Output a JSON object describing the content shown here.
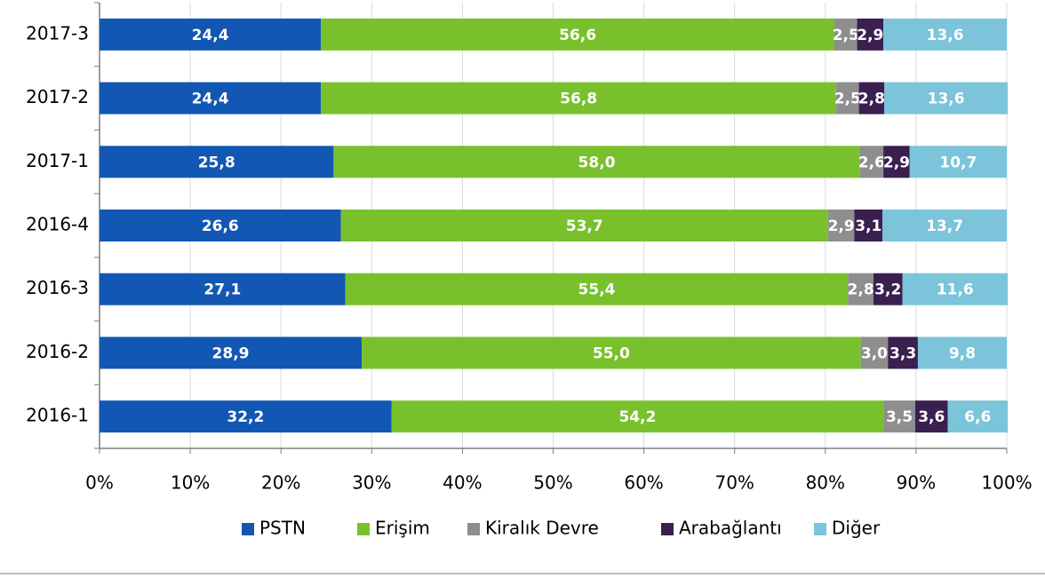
{
  "chart_data": {
    "type": "stacked_barh",
    "categories": [
      "2017-3",
      "2017-2",
      "2017-1",
      "2016-4",
      "2016-3",
      "2016-2",
      "2016-1"
    ],
    "series": [
      {
        "name": "PSTN",
        "color": "#1257b3",
        "values": [
          24.4,
          24.4,
          25.8,
          26.6,
          27.1,
          28.9,
          32.2
        ],
        "value_labels": [
          "24,4",
          "24,4",
          "25,8",
          "26,6",
          "27,1",
          "28,9",
          "32,2"
        ]
      },
      {
        "name": "Erişim",
        "color": "#78c12d",
        "values": [
          56.6,
          56.8,
          58.0,
          53.7,
          55.4,
          55.0,
          54.2
        ],
        "value_labels": [
          "56,6",
          "56,8",
          "58,0",
          "53,7",
          "55,4",
          "55,0",
          "54,2"
        ]
      },
      {
        "name": "Kiralık Devre",
        "color": "#8e8e8e",
        "values": [
          2.5,
          2.5,
          2.6,
          2.9,
          2.8,
          3.0,
          3.5
        ],
        "value_labels": [
          "2,5",
          "2,5",
          "2,6",
          "2,9",
          "2,8",
          "3,0",
          "3,5"
        ]
      },
      {
        "name": "Arabağlantı",
        "color": "#3a1f50",
        "values": [
          2.9,
          2.8,
          2.9,
          3.1,
          3.2,
          3.3,
          3.6
        ],
        "value_labels": [
          "2,9",
          "2,8",
          "2,9",
          "3,1",
          "3,2",
          "3,3",
          "3,6"
        ]
      },
      {
        "name": "Diğer",
        "color": "#7bc4da",
        "values": [
          13.6,
          13.6,
          10.7,
          13.7,
          11.6,
          9.8,
          6.6
        ],
        "value_labels": [
          "13,6",
          "13,6",
          "10,7",
          "13,7",
          "11,6",
          "9,8",
          "6,6"
        ]
      }
    ],
    "xlim": [
      0,
      100
    ],
    "xticks": [
      {
        "value": 0,
        "label": "0%"
      },
      {
        "value": 10,
        "label": "10%"
      },
      {
        "value": 20,
        "label": "20%"
      },
      {
        "value": 30,
        "label": "30%"
      },
      {
        "value": 40,
        "label": "40%"
      },
      {
        "value": 50,
        "label": "50%"
      },
      {
        "value": 60,
        "label": "60%"
      },
      {
        "value": 70,
        "label": "70%"
      },
      {
        "value": 80,
        "label": "80%"
      },
      {
        "value": 90,
        "label": "90%"
      },
      {
        "value": 100,
        "label": "100%"
      }
    ],
    "grid": true,
    "legend": "bottom"
  }
}
